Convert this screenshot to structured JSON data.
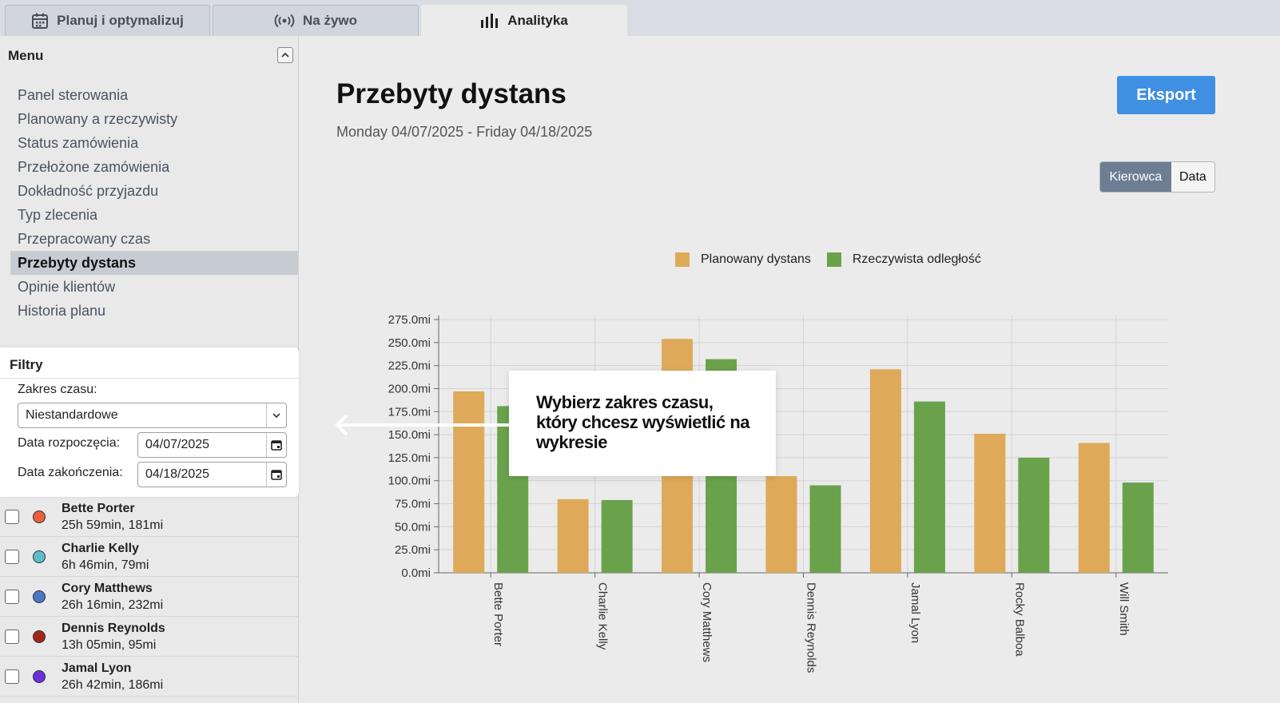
{
  "tabs": [
    {
      "label": "Planuj i optymalizuj",
      "icon": "calendar-icon"
    },
    {
      "label": "Na żywo",
      "icon": "broadcast-icon"
    },
    {
      "label": "Analityka",
      "icon": "bar-chart-icon"
    }
  ],
  "sidebar": {
    "menu_title": "Menu",
    "items": [
      {
        "label": "Panel sterowania"
      },
      {
        "label": "Planowany a rzeczywisty"
      },
      {
        "label": "Status zamówienia"
      },
      {
        "label": "Przełożone zamówienia"
      },
      {
        "label": "Dokładność przyjazdu"
      },
      {
        "label": "Typ zlecenia"
      },
      {
        "label": "Przepracowany czas"
      },
      {
        "label": "Przebyty dystans",
        "active": true
      },
      {
        "label": "Opinie klientów"
      },
      {
        "label": "Historia planu"
      }
    ]
  },
  "filters": {
    "title": "Filtry",
    "range_label": "Zakres czasu:",
    "range_value": "Niestandardowe",
    "start_label": "Data rozpoczęcia:",
    "start_value": "04/07/2025",
    "end_label": "Data zakończenia:",
    "end_value": "04/18/2025"
  },
  "drivers": [
    {
      "name": "Bette Porter",
      "meta": "25h 59min, 181mi",
      "color": "#e8603c"
    },
    {
      "name": "Charlie Kelly",
      "meta": "6h 46min, 79mi",
      "color": "#5bbccd"
    },
    {
      "name": "Cory Matthews",
      "meta": "26h 16min, 232mi",
      "color": "#4a78c2"
    },
    {
      "name": "Dennis Reynolds",
      "meta": "13h 05min, 95mi",
      "color": "#a3261d"
    },
    {
      "name": "Jamal Lyon",
      "meta": "26h 42min, 186mi",
      "color": "#6b2fe0"
    }
  ],
  "main": {
    "title": "Przebyty dystans",
    "date_range": "Monday 04/07/2025 - Friday 04/18/2025",
    "export_label": "Eksport",
    "toggle": [
      "Kierowca",
      "Data"
    ]
  },
  "callout": {
    "text": "Wybierz zakres czasu, który chcesz wyświetlić na wykresie"
  },
  "colors": {
    "planned": "#deaa59",
    "actual": "#6aa24c",
    "accent": "#3f8fe3"
  },
  "chart_data": {
    "type": "bar",
    "categories": [
      "Bette Porter",
      "Charlie Kelly",
      "Cory Matthews",
      "Dennis Reynolds",
      "Jamal Lyon",
      "Rocky Balboa",
      "Will Smith"
    ],
    "series": [
      {
        "name": "Planowany dystans",
        "values": [
          197,
          80,
          254,
          105,
          221,
          151,
          141
        ]
      },
      {
        "name": "Rzeczywista odległość",
        "values": [
          181,
          79,
          232,
          95,
          186,
          125,
          98
        ]
      }
    ],
    "ylim": [
      0,
      275
    ],
    "yticks": [
      "0.0mi",
      "25.0mi",
      "50.0mi",
      "75.0mi",
      "100.0mi",
      "125.0mi",
      "150.0mi",
      "175.0mi",
      "200.0mi",
      "225.0mi",
      "250.0mi",
      "275.0mi"
    ],
    "legend": "top",
    "grid": true
  }
}
